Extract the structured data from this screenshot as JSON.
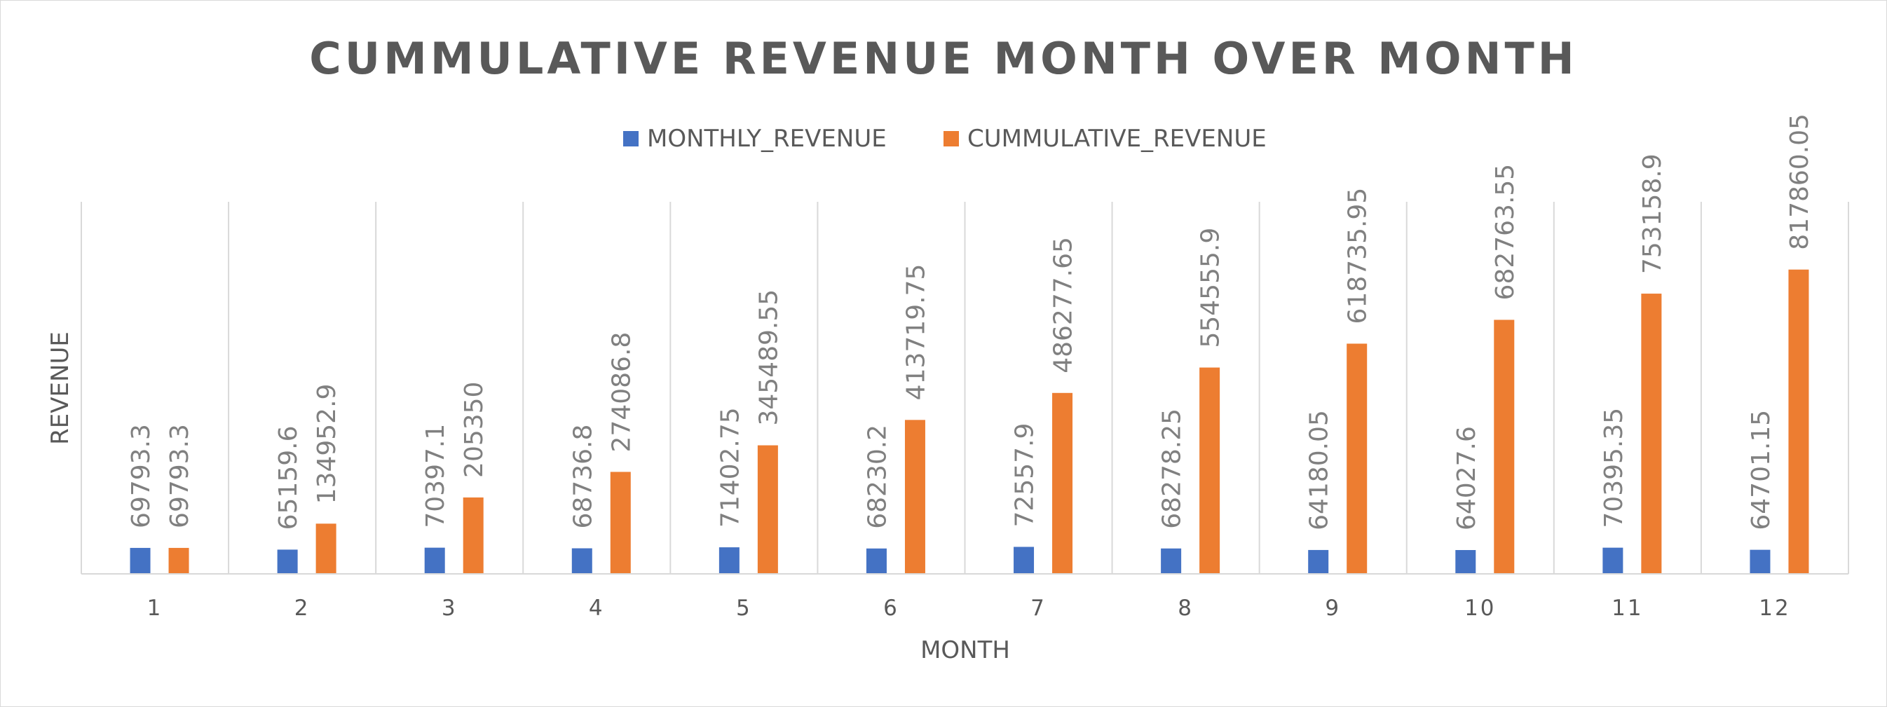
{
  "chart_data": {
    "type": "bar",
    "title": "CUMMULATIVE REVENUE MONTH OVER MONTH",
    "xlabel": "MONTH",
    "ylabel": "REVENUE",
    "categories": [
      "1",
      "2",
      "3",
      "4",
      "5",
      "6",
      "7",
      "8",
      "9",
      "10",
      "11",
      "12"
    ],
    "series": [
      {
        "name": "MONTHLY_REVENUE",
        "color": "#4472C4",
        "values": [
          69793.3,
          65159.6,
          70397.1,
          68736.8,
          71402.75,
          68230.2,
          72557.9,
          68278.25,
          64180.05,
          64027.6,
          70395.35,
          64701.15
        ],
        "labels": [
          "69793.3",
          "65159.6",
          "70397.1",
          "68736.8",
          "71402.75",
          "68230.2",
          "72557.9",
          "68278.25",
          "64180.05",
          "64027.6",
          "70395.35",
          "64701.15"
        ]
      },
      {
        "name": "CUMMULATIVE_REVENUE",
        "color": "#ED7D31",
        "values": [
          69793.3,
          134952.9,
          205350,
          274086.8,
          345489.55,
          413719.75,
          486277.65,
          554555.9,
          618735.95,
          682763.55,
          753158.9,
          817860.05
        ],
        "labels": [
          "69793.3",
          "134952.9",
          "205350",
          "274086.8",
          "345489.55",
          "413719.75",
          "486277.65",
          "554555.9",
          "618735.95",
          "682763.55",
          "753158.9",
          "817860.05"
        ]
      }
    ],
    "ylim": [
      0,
      1000000
    ],
    "grid": "vertical category separators",
    "legend": "top-center",
    "data_labels": "rotated vertical above bars"
  }
}
